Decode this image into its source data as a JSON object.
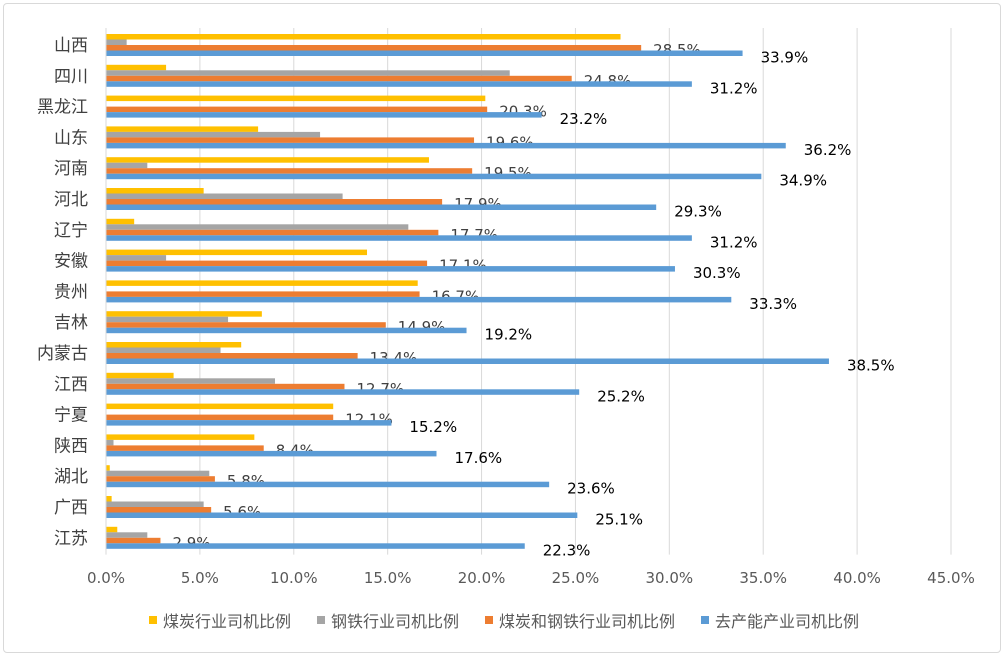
{
  "chart_data": {
    "type": "bar",
    "orientation": "horizontal",
    "categories": [
      "山西",
      "四川",
      "黑龙江",
      "山东",
      "河南",
      "河北",
      "辽宁",
      "安徽",
      "贵州",
      "吉林",
      "内蒙古",
      "江西",
      "宁夏",
      "陕西",
      "湖北",
      "广西",
      "江苏"
    ],
    "series": [
      {
        "name": "煤炭行业司机比例",
        "color": "#ffc000",
        "values": [
          27.4,
          3.2,
          20.2,
          8.1,
          17.2,
          5.2,
          1.5,
          13.9,
          16.6,
          8.3,
          7.2,
          3.6,
          12.1,
          7.9,
          0.2,
          0.3,
          0.6
        ],
        "labels": null
      },
      {
        "name": "钢铁行业司机比例",
        "color": "#a5a5a5",
        "values": [
          1.1,
          21.5,
          0,
          11.4,
          2.2,
          12.6,
          16.1,
          3.2,
          0,
          6.5,
          6.1,
          9.0,
          0,
          0.4,
          5.5,
          5.2,
          2.2
        ],
        "labels": null
      },
      {
        "name": "煤炭和钢铁行业司机比例",
        "color": "#ed7d31",
        "values": [
          28.5,
          24.8,
          20.3,
          19.6,
          19.5,
          17.9,
          17.7,
          17.1,
          16.7,
          14.9,
          13.4,
          12.7,
          12.1,
          8.4,
          5.8,
          5.6,
          2.9
        ],
        "labels": [
          "28.5%",
          "24.8%",
          "20.3%",
          "19.6%",
          "19.5%",
          "17.9%",
          "17.7%",
          "17.1%",
          "16.7%",
          "14.9%",
          "13.4%",
          "12.7%",
          "12.1%",
          "8.4%",
          "5.8%",
          "5.6%",
          "2.9%"
        ]
      },
      {
        "name": "去产能产业司机比例",
        "color": "#5b9bd5",
        "values": [
          33.9,
          31.2,
          23.2,
          36.2,
          34.9,
          29.3,
          31.2,
          30.3,
          33.3,
          19.2,
          38.5,
          25.2,
          15.2,
          17.6,
          23.6,
          25.1,
          22.3
        ],
        "labels": [
          "33.9%",
          "31.2%",
          "23.2%",
          "36.2%",
          "34.9%",
          "29.3%",
          "31.2%",
          "30.3%",
          "33.3%",
          "19.2%",
          "38.5%",
          "25.2%",
          "15.2%",
          "17.6%",
          "23.6%",
          "25.1%",
          "22.3%"
        ]
      }
    ],
    "xlim": [
      0,
      45
    ],
    "xticks": [
      "0.0%",
      "5.0%",
      "10.0%",
      "15.0%",
      "20.0%",
      "25.0%",
      "30.0%",
      "35.0%",
      "40.0%",
      "45.0%"
    ],
    "grid": true,
    "legend": "bottom"
  }
}
